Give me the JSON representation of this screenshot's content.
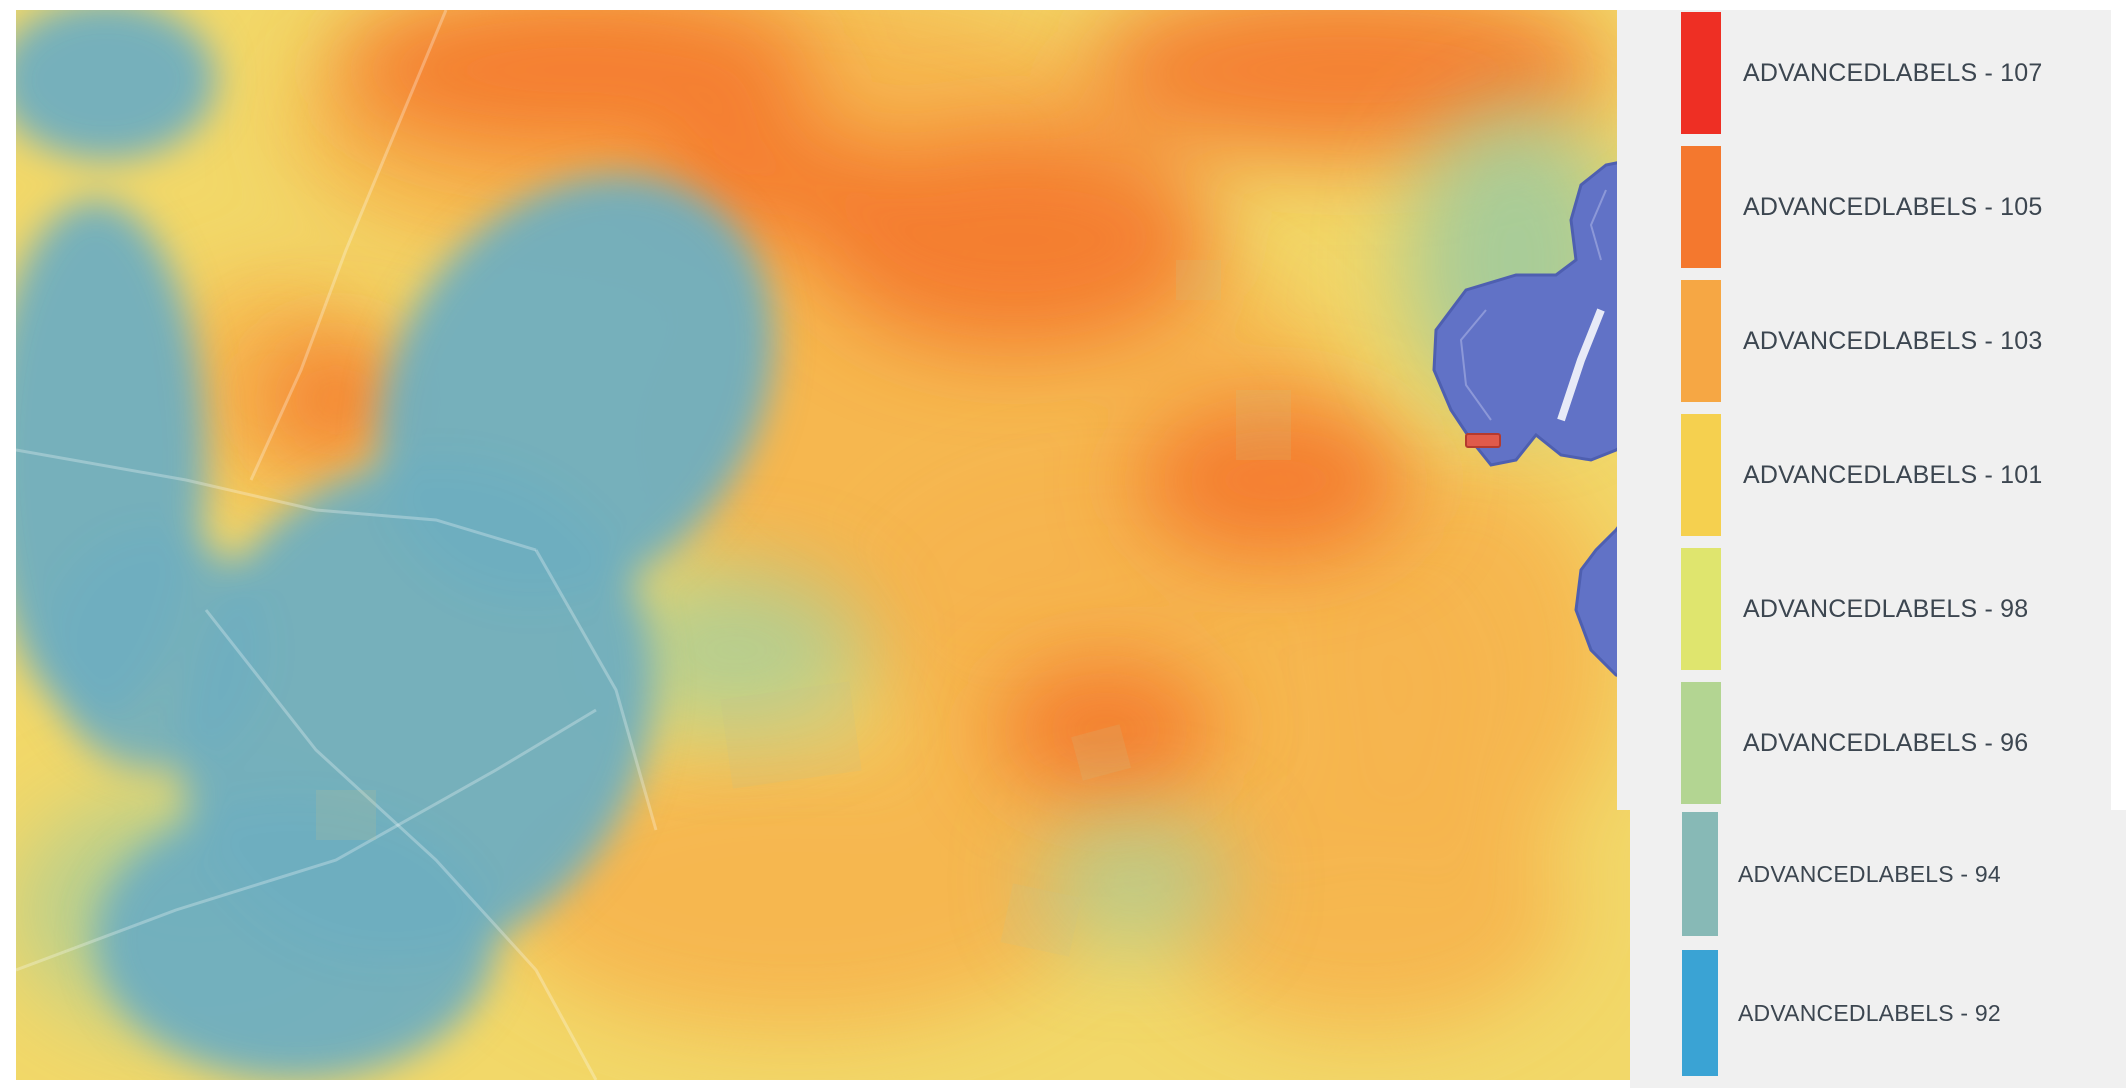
{
  "legend": {
    "items": [
      {
        "label": "ADVANCEDLABELS - 107",
        "color": "#ee2f24"
      },
      {
        "label": "ADVANCEDLABELS - 105",
        "color": "#f4782e"
      },
      {
        "label": "ADVANCEDLABELS - 103",
        "color": "#f6a744"
      },
      {
        "label": "ADVANCEDLABELS - 101",
        "color": "#f5d04f"
      },
      {
        "label": "ADVANCEDLABELS - 98",
        "color": "#dfe56e"
      },
      {
        "label": "ADVANCEDLABELS - 96",
        "color": "#b3d592"
      },
      {
        "label": "ADVANCEDLABELS - 94",
        "color": "#87b9b6"
      },
      {
        "label": "ADVANCEDLABELS - 92",
        "color": "#3aa3d4"
      }
    ]
  },
  "map": {
    "heat_colors": {
      "hot": "#f4782e",
      "warm": "#f6b44c",
      "mild": "#f2e06a",
      "cool": "#9ccaa0",
      "cold": "#6faec0"
    },
    "water_color": "#6172c6",
    "marker_color": "#e05a4a",
    "icons": [
      "water-body",
      "location-marker"
    ]
  }
}
